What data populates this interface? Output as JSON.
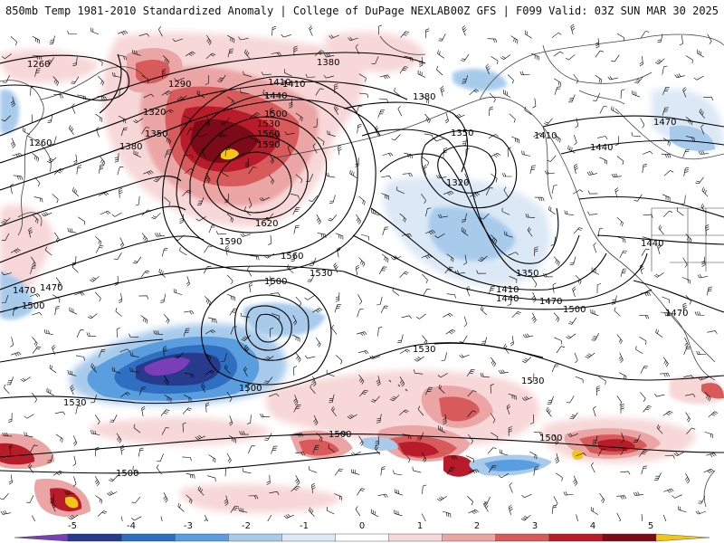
{
  "header": {
    "title_left": "850mb Temp 1981-2010 Standardized Anomaly | College of DuPage NEXLAB",
    "title_right": "00Z GFS | F099 Valid: 03Z SUN MAR 30 2025"
  },
  "contour_labels": [
    "1260",
    "1260",
    "1290",
    "1320",
    "1350",
    "1380",
    "1410",
    "1440",
    "1500",
    "1530",
    "1560",
    "1590",
    "1620",
    "1590",
    "1560",
    "1530",
    "1380",
    "1410",
    "1380",
    "1350",
    "1320",
    "1350",
    "1410",
    "1440",
    "1470",
    "1500",
    "1470",
    "1410",
    "1440",
    "1470",
    "1440",
    "1500",
    "1470",
    "1500",
    "1530",
    "1530",
    "1530",
    "1500",
    "1500",
    "1500",
    "1500",
    "1470"
  ],
  "colorbar": {
    "ticks": [
      "-5",
      "-4",
      "-3",
      "-2",
      "-1",
      "0",
      "1",
      "2",
      "3",
      "4",
      "5"
    ],
    "colors": [
      "#7a3fb8",
      "#283a8c",
      "#2f6fc1",
      "#5b9ee0",
      "#a8cbec",
      "#dbe8f5",
      "#ffffff",
      "#f7d7d7",
      "#eba5a5",
      "#d85a5a",
      "#b81c2a",
      "#7c0a18",
      "#f2c618"
    ]
  },
  "colors": {
    "cold_anomaly": "#5b9ee0",
    "warm_anomaly": "#d85a5a",
    "coast": "#444444",
    "contour": "#000000"
  }
}
